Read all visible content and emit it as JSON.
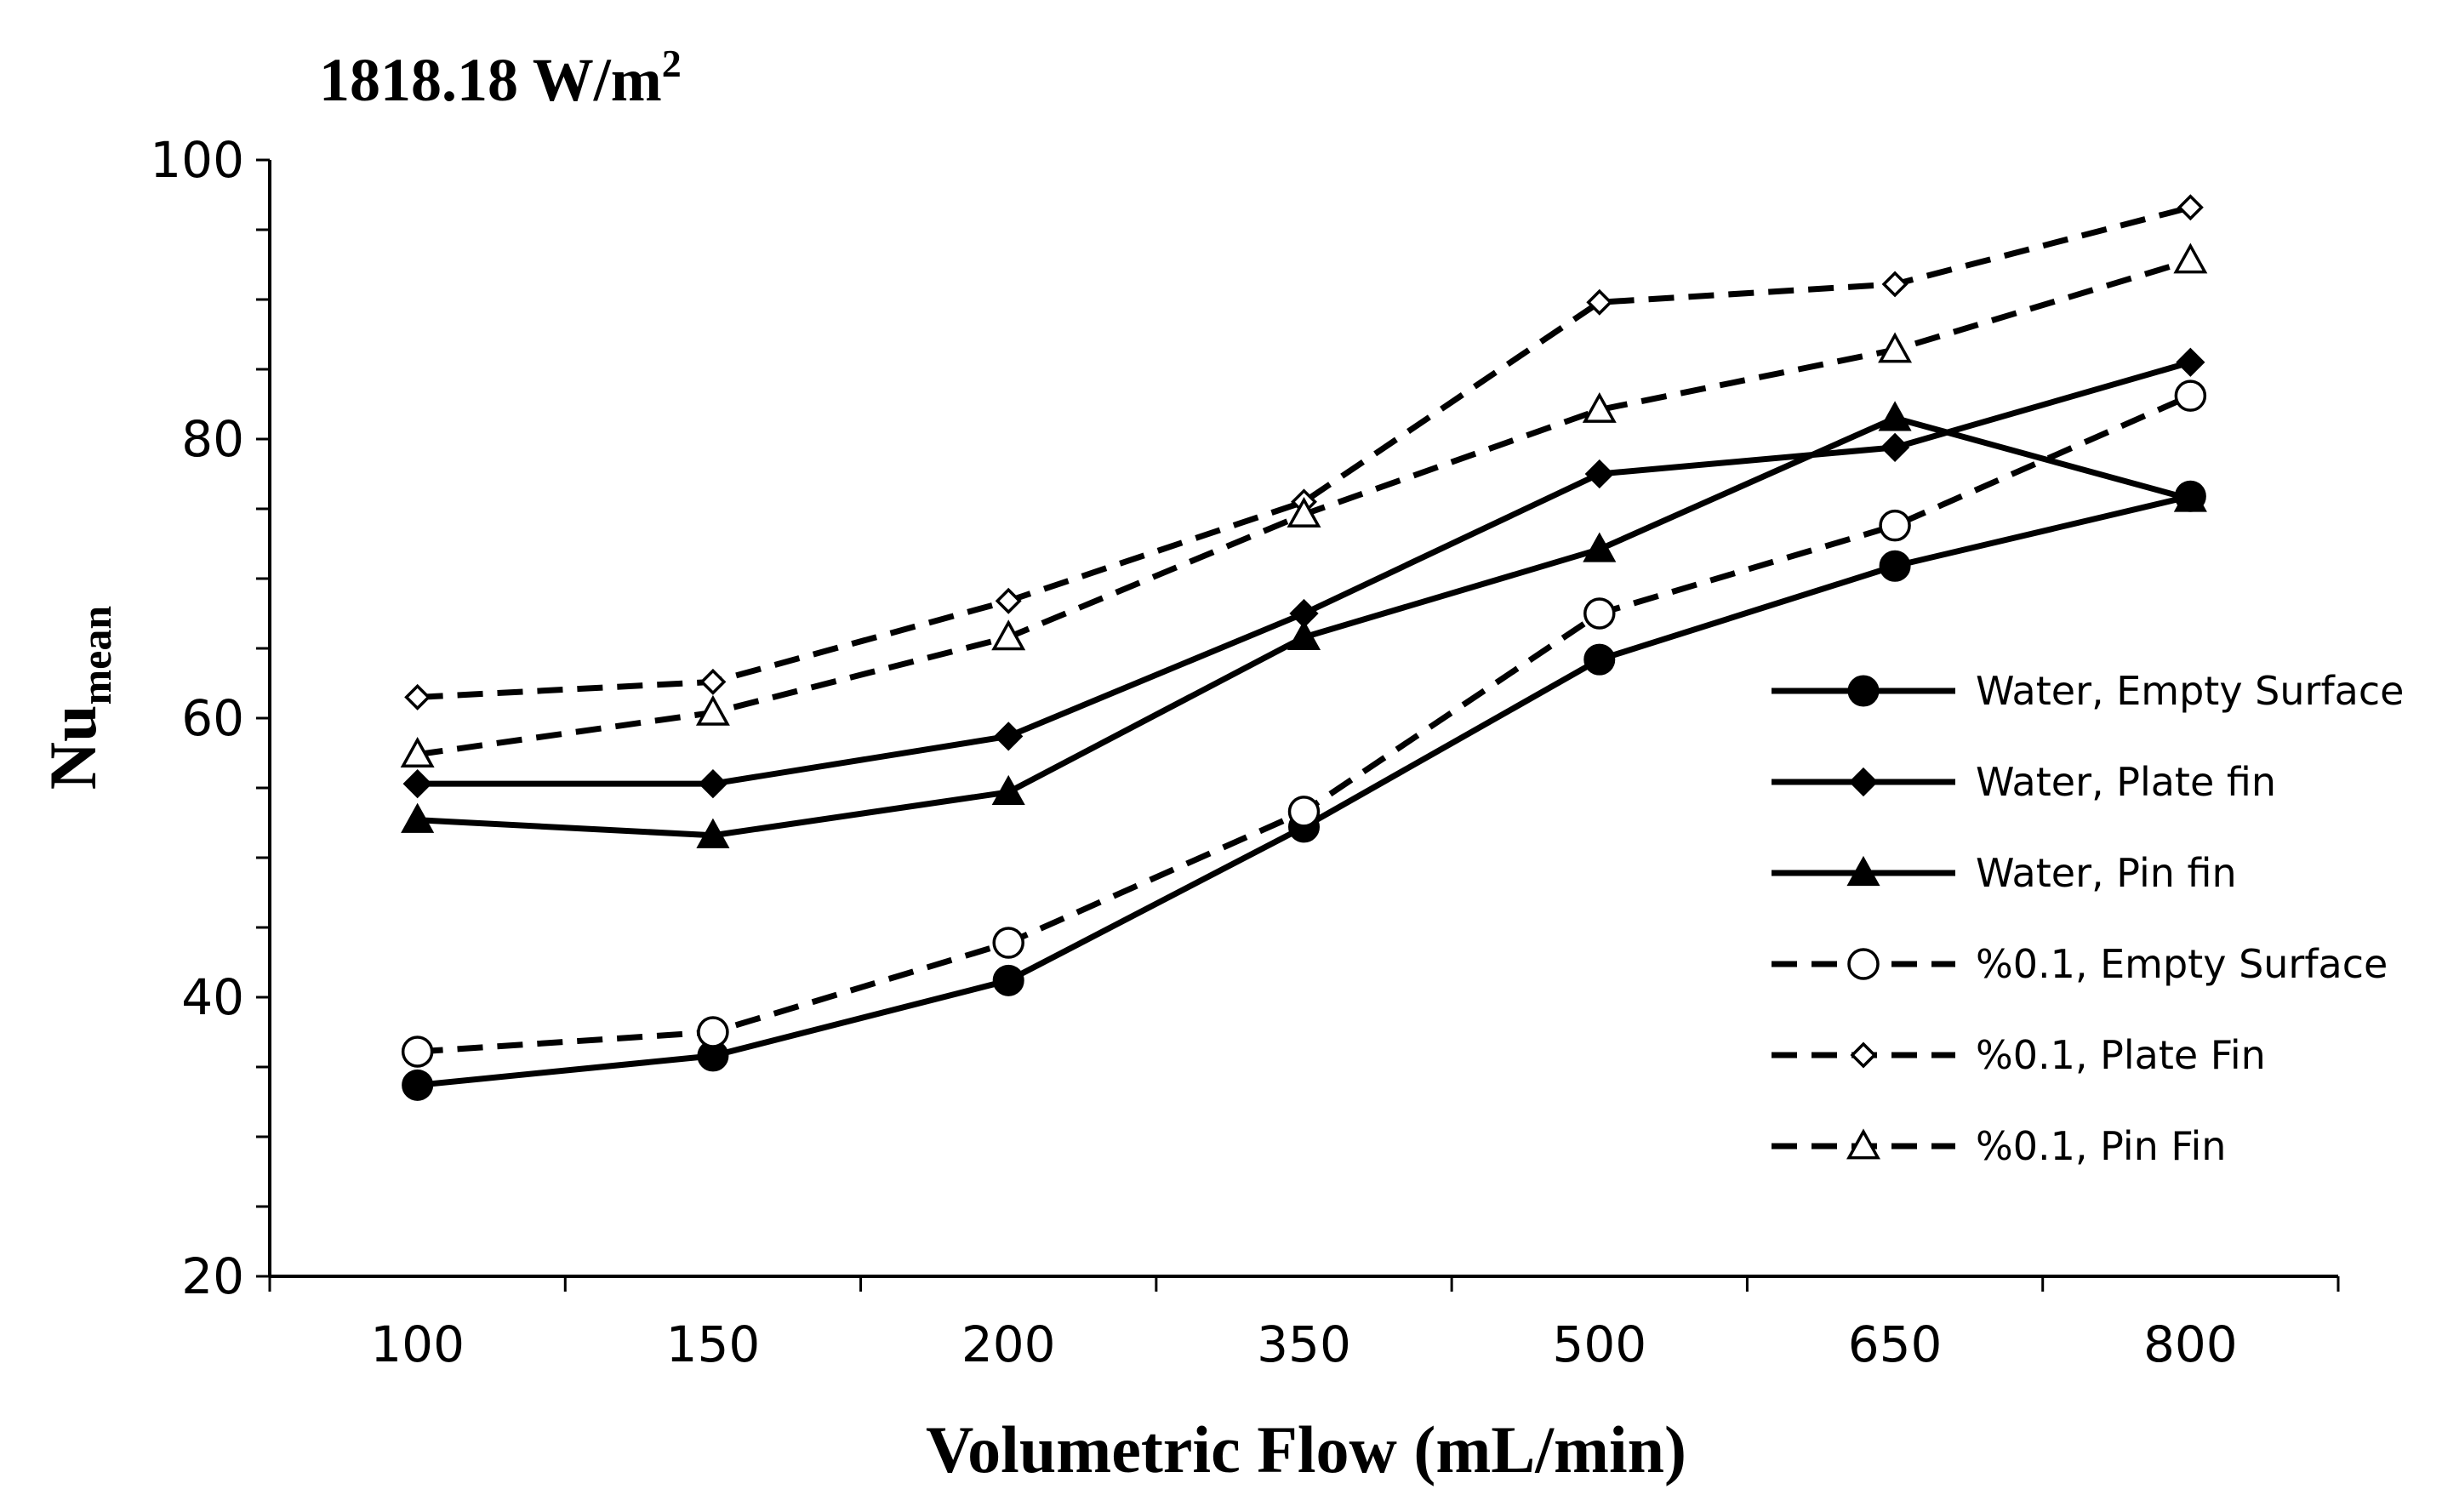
{
  "chart_data": {
    "type": "line",
    "title": "1818.18 W/m",
    "title_superscript": "2",
    "xlabel": "Volumetric Flow (mL/min)",
    "ylabel": "Nu",
    "ylabel_subscript": "mean",
    "categories": [
      "100",
      "150",
      "200",
      "350",
      "500",
      "650",
      "800"
    ],
    "ylim": [
      20,
      100
    ],
    "yticks": [
      "20",
      "40",
      "60",
      "80",
      "100"
    ],
    "grid": false,
    "legend_position": "right",
    "series": [
      {
        "name": "Water, Empty Surface",
        "marker": "circle",
        "filled": true,
        "dashed": false,
        "values": [
          33.7,
          35.8,
          41.2,
          52.2,
          64.2,
          70.9,
          75.9
        ]
      },
      {
        "name": "Water, Plate fin",
        "marker": "diamond",
        "filled": true,
        "dashed": false,
        "values": [
          55.3,
          55.3,
          58.7,
          67.5,
          77.5,
          79.4,
          85.5
        ]
      },
      {
        "name": "Water, Pin fin",
        "marker": "triangle",
        "filled": true,
        "dashed": false,
        "values": [
          52.7,
          51.6,
          54.7,
          65.8,
          72.1,
          81.5,
          75.7
        ]
      },
      {
        "name": "%0.1, Empty Surface",
        "marker": "circle",
        "filled": false,
        "dashed": true,
        "values": [
          36.1,
          37.5,
          43.9,
          53.3,
          67.5,
          73.8,
          83.1
        ]
      },
      {
        "name": "%0.1, Plate Fin",
        "marker": "diamond",
        "filled": false,
        "dashed": true,
        "values": [
          61.5,
          62.6,
          68.4,
          75.5,
          89.8,
          91.1,
          96.6
        ]
      },
      {
        "name": "%0.1, Pin Fin",
        "marker": "triangle",
        "filled": false,
        "dashed": true,
        "values": [
          57.4,
          60.4,
          65.8,
          74.6,
          82.1,
          86.4,
          92.8
        ]
      }
    ]
  },
  "colors": {
    "line": "#000000",
    "background": "#ffffff"
  }
}
